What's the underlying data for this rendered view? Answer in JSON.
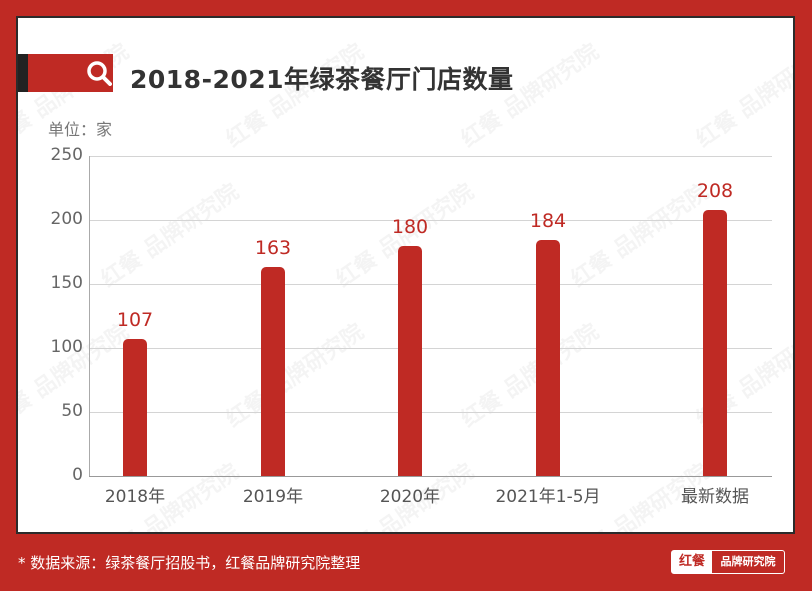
{
  "header": {
    "title": "2018-2021年绿茶餐厅门店数量",
    "unit_label": "单位：家",
    "icon": "search-icon"
  },
  "footer": {
    "source": "* 数据来源：绿茶餐厅招股书，红餐品牌研究院整理",
    "logo_left": "红餐",
    "logo_right": "品牌研究院"
  },
  "watermark": "红餐 品牌研究院",
  "colors": {
    "accent": "#bf2a24",
    "bar": "#bf2a24",
    "background": "#ffffff",
    "frame": "#bf2a24"
  },
  "chart_data": {
    "type": "bar",
    "title": "2018-2021年绿茶餐厅门店数量",
    "xlabel": "",
    "ylabel": "单位：家",
    "categories": [
      "2018年",
      "2019年",
      "2020年",
      "2021年1-5月",
      "最新数据"
    ],
    "values": [
      107,
      163,
      180,
      184,
      208
    ],
    "ylim": [
      0,
      250
    ],
    "yticks": [
      0,
      50,
      100,
      150,
      200,
      250
    ],
    "grid": true,
    "legend": "none",
    "data_labels": true
  }
}
